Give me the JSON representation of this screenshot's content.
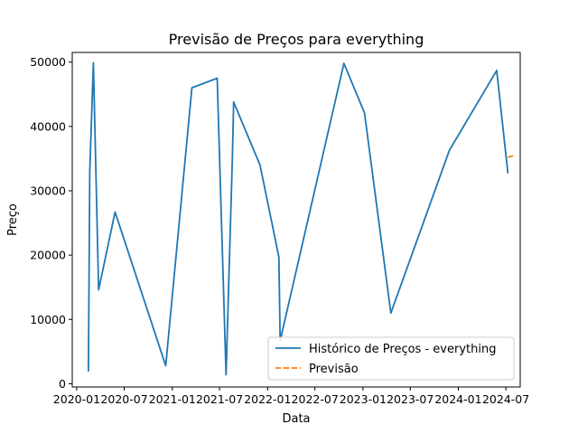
{
  "chart_data": {
    "type": "line",
    "title": "Previsão de Preços para everything",
    "xlabel": "Data",
    "ylabel": "Preço",
    "xlim": [
      "2019-12-15",
      "2024-08-25"
    ],
    "ylim": [
      -500,
      51500
    ],
    "x_ticks": [
      {
        "date": "2020-01-01",
        "label": "2020-01"
      },
      {
        "date": "2020-07-01",
        "label": "2020-07"
      },
      {
        "date": "2021-01-01",
        "label": "2021-01"
      },
      {
        "date": "2021-07-01",
        "label": "2021-07"
      },
      {
        "date": "2022-01-01",
        "label": "2022-01"
      },
      {
        "date": "2022-07-01",
        "label": "2022-07"
      },
      {
        "date": "2023-01-01",
        "label": "2023-01"
      },
      {
        "date": "2023-07-01",
        "label": "2023-07"
      },
      {
        "date": "2024-01-01",
        "label": "2024-01"
      },
      {
        "date": "2024-07-01",
        "label": "2024-07"
      }
    ],
    "y_ticks": [
      0,
      10000,
      20000,
      30000,
      40000,
      50000
    ],
    "grid": false,
    "legend_position": "lower-right",
    "series": [
      {
        "name": "Histórico de Preços - everything",
        "color": "#1f77b4",
        "style": "solid",
        "points": [
          {
            "x": "2020-02-15",
            "y": 1900
          },
          {
            "x": "2020-02-20",
            "y": 33000
          },
          {
            "x": "2020-03-05",
            "y": 49900
          },
          {
            "x": "2020-03-25",
            "y": 14600
          },
          {
            "x": "2020-05-27",
            "y": 26700
          },
          {
            "x": "2020-12-07",
            "y": 2800
          },
          {
            "x": "2021-03-17",
            "y": 46000
          },
          {
            "x": "2021-06-22",
            "y": 47500
          },
          {
            "x": "2021-07-26",
            "y": 1400
          },
          {
            "x": "2021-08-19",
            "y": 35000
          },
          {
            "x": "2021-08-24",
            "y": 43800
          },
          {
            "x": "2021-12-03",
            "y": 34000
          },
          {
            "x": "2022-02-13",
            "y": 19700
          },
          {
            "x": "2022-02-18",
            "y": 6700
          },
          {
            "x": "2022-10-20",
            "y": 49800
          },
          {
            "x": "2023-01-07",
            "y": 42100
          },
          {
            "x": "2023-04-18",
            "y": 11000
          },
          {
            "x": "2023-11-28",
            "y": 36300
          },
          {
            "x": "2024-05-27",
            "y": 48700
          },
          {
            "x": "2024-07-09",
            "y": 32700
          }
        ]
      },
      {
        "name": "Previsão",
        "color": "#ff7f0e",
        "style": "dashed",
        "points": [
          {
            "x": "2024-07-09",
            "y": 35200
          },
          {
            "x": "2024-08-03",
            "y": 35500
          }
        ]
      }
    ]
  }
}
